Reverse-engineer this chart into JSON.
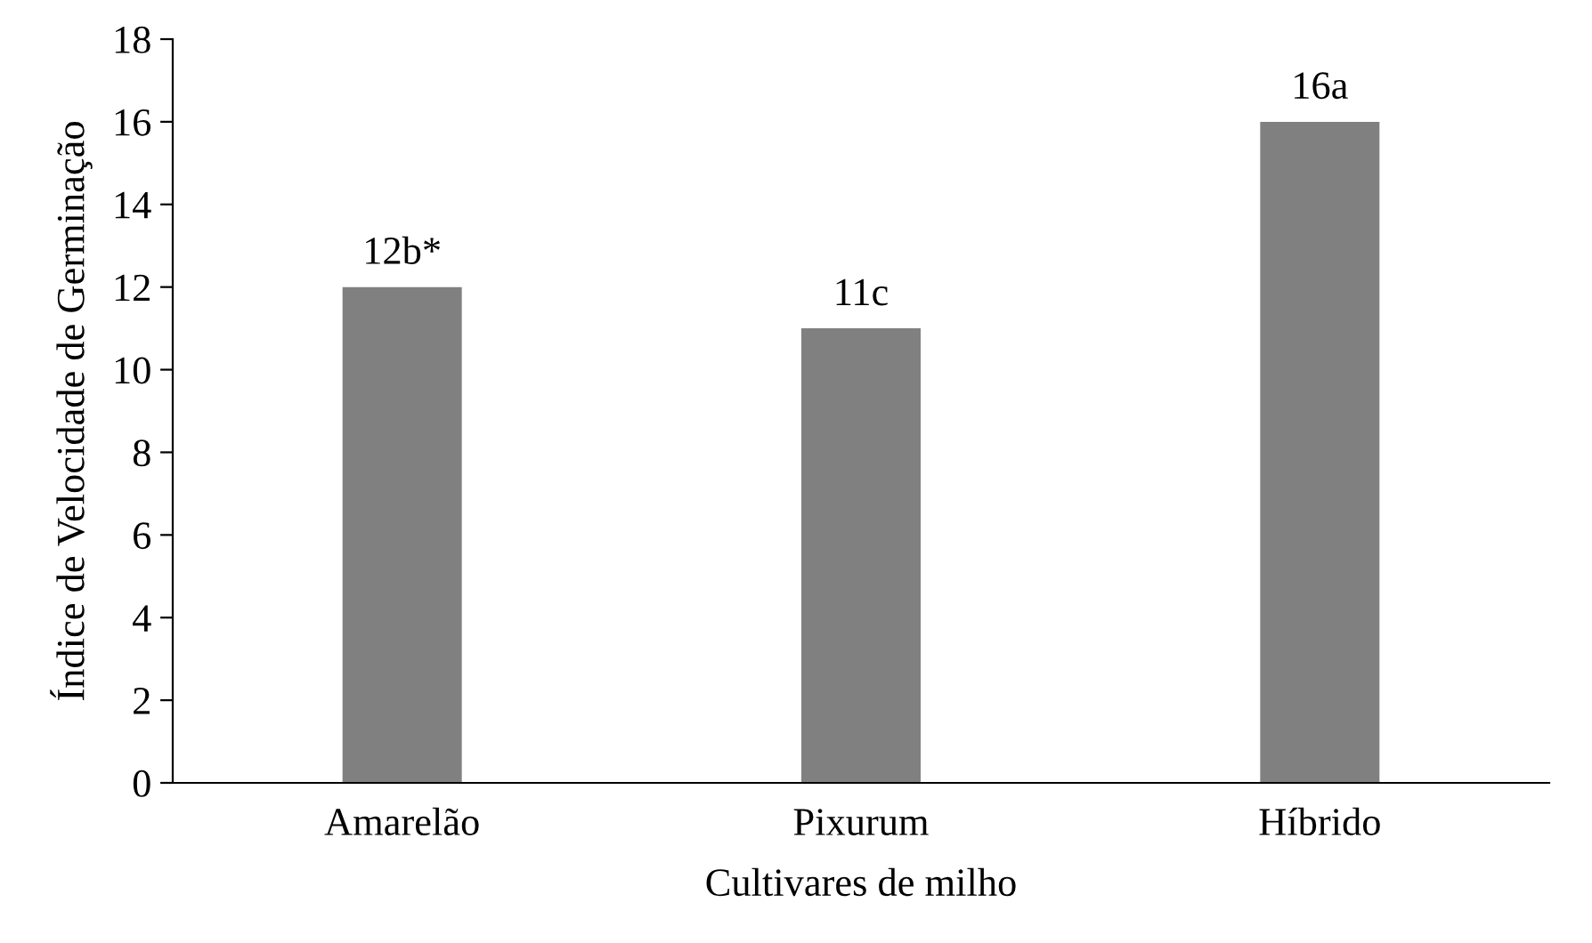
{
  "chart_data": {
    "type": "bar",
    "xlabel": "Cultivares de milho",
    "ylabel": "Índice de Velocidade de Germinação",
    "categories": [
      "Amarelão",
      "Pixurum",
      "Híbrido"
    ],
    "values": [
      12,
      11,
      16
    ],
    "value_labels": [
      "12b*",
      "11c",
      "16a"
    ],
    "color": "#808080",
    "ylim": [
      0,
      18
    ],
    "yticks": [
      0,
      2,
      4,
      6,
      8,
      10,
      12,
      14,
      16,
      18
    ],
    "grid": false,
    "legend": false
  }
}
